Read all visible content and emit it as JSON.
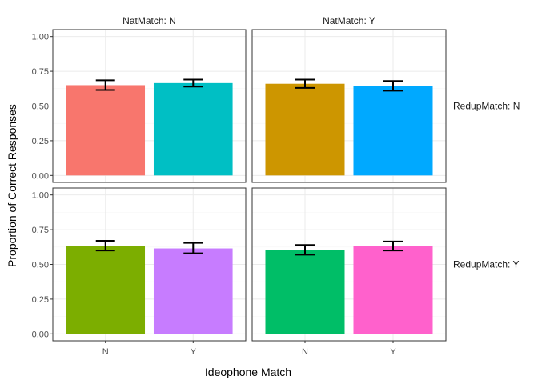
{
  "chart_data": {
    "type": "bar",
    "xlabel": "Ideophone Match",
    "ylabel": "Proportion of Correct Responses",
    "ylim": [
      0,
      1
    ],
    "yticks": [
      0.0,
      0.25,
      0.5,
      0.75,
      1.0
    ],
    "ytick_labels": [
      "0.00",
      "0.25",
      "0.50",
      "0.75",
      "1.00"
    ],
    "categories": [
      "N",
      "Y"
    ],
    "grid": true,
    "facet_cols": [
      "NatMatch: N",
      "NatMatch: Y"
    ],
    "facet_rows": [
      "RedupMatch: N",
      "RedupMatch: Y"
    ],
    "panels": [
      {
        "row": 0,
        "col": 0,
        "bars": [
          {
            "category": "N",
            "value": 0.65,
            "lower": 0.615,
            "upper": 0.685,
            "color": "#F8766D"
          },
          {
            "category": "Y",
            "value": 0.665,
            "lower": 0.64,
            "upper": 0.69,
            "color": "#00BFC4"
          }
        ]
      },
      {
        "row": 0,
        "col": 1,
        "bars": [
          {
            "category": "N",
            "value": 0.66,
            "lower": 0.63,
            "upper": 0.69,
            "color": "#CD9600"
          },
          {
            "category": "Y",
            "value": 0.645,
            "lower": 0.61,
            "upper": 0.68,
            "color": "#00A9FF"
          }
        ]
      },
      {
        "row": 1,
        "col": 0,
        "bars": [
          {
            "category": "N",
            "value": 0.635,
            "lower": 0.6,
            "upper": 0.67,
            "color": "#7CAE00"
          },
          {
            "category": "Y",
            "value": 0.615,
            "lower": 0.58,
            "upper": 0.655,
            "color": "#C77CFF"
          }
        ]
      },
      {
        "row": 1,
        "col": 1,
        "bars": [
          {
            "category": "N",
            "value": 0.605,
            "lower": 0.57,
            "upper": 0.64,
            "color": "#00BE67"
          },
          {
            "category": "Y",
            "value": 0.63,
            "lower": 0.6,
            "upper": 0.665,
            "color": "#FF61CC"
          }
        ]
      }
    ]
  }
}
